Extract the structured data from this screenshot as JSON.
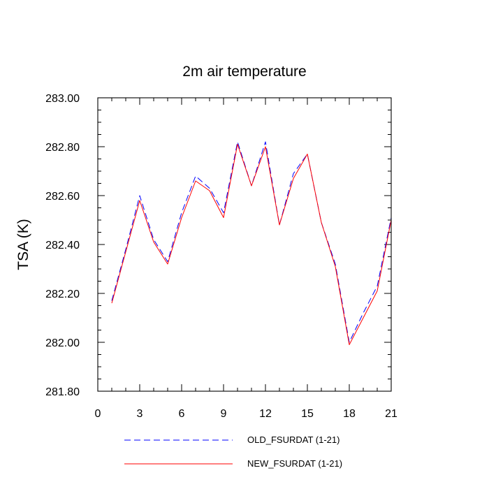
{
  "chart_data": {
    "type": "line",
    "title": "2m air temperature",
    "xlabel": "",
    "ylabel": "TSA  (K)",
    "xlim": [
      0,
      21
    ],
    "ylim": [
      281.8,
      283.0
    ],
    "x_ticks": [
      "0",
      "3",
      "6",
      "9",
      "12",
      "15",
      "18",
      "21"
    ],
    "y_ticks": [
      "281.80",
      "282.00",
      "282.20",
      "282.40",
      "282.60",
      "282.80",
      "283.00"
    ],
    "x": [
      1,
      2,
      3,
      4,
      5,
      6,
      7,
      8,
      9,
      10,
      11,
      12,
      13,
      14,
      15,
      16,
      17,
      18,
      19,
      20,
      21
    ],
    "series": [
      {
        "name": "OLD_FSURDAT (1-21)",
        "color": "#0000ff",
        "style": "dashed",
        "values": [
          282.17,
          282.38,
          282.6,
          282.42,
          282.33,
          282.53,
          282.68,
          282.63,
          282.53,
          282.82,
          282.64,
          282.82,
          282.48,
          282.69,
          282.77,
          282.49,
          282.32,
          282.0,
          282.12,
          282.23,
          282.51
        ]
      },
      {
        "name": "NEW_FSURDAT (1-21)",
        "color": "#ff0000",
        "style": "solid",
        "values": [
          282.16,
          282.37,
          282.58,
          282.41,
          282.32,
          282.51,
          282.66,
          282.62,
          282.51,
          282.81,
          282.64,
          282.8,
          282.48,
          282.67,
          282.77,
          282.49,
          282.31,
          281.99,
          282.1,
          282.21,
          282.5
        ]
      }
    ],
    "grid": false,
    "legend": "bottom"
  }
}
